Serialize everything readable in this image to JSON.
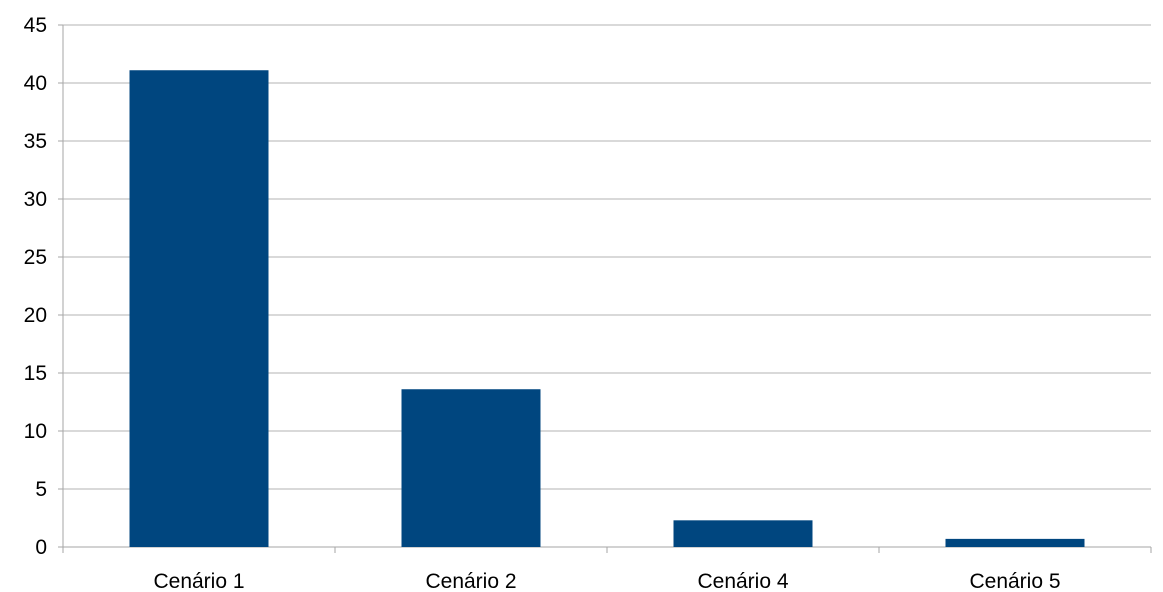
{
  "chart_data": {
    "type": "bar",
    "title": "",
    "xlabel": "",
    "ylabel": "",
    "categories": [
      "Cenário 1",
      "Cenário 2",
      "Cenário 4",
      "Cenário 5"
    ],
    "values": [
      41.1,
      13.6,
      2.3,
      0.7
    ],
    "ylim": [
      0,
      45
    ],
    "yticks": [
      "0",
      "5",
      "10",
      "15",
      "20",
      "25",
      "30",
      "35",
      "40",
      "45"
    ],
    "grid": true,
    "legend": "none",
    "bar_color": "#00467f",
    "grid_color": "#b3b3b3",
    "axis_color": "#a6a6a6"
  }
}
